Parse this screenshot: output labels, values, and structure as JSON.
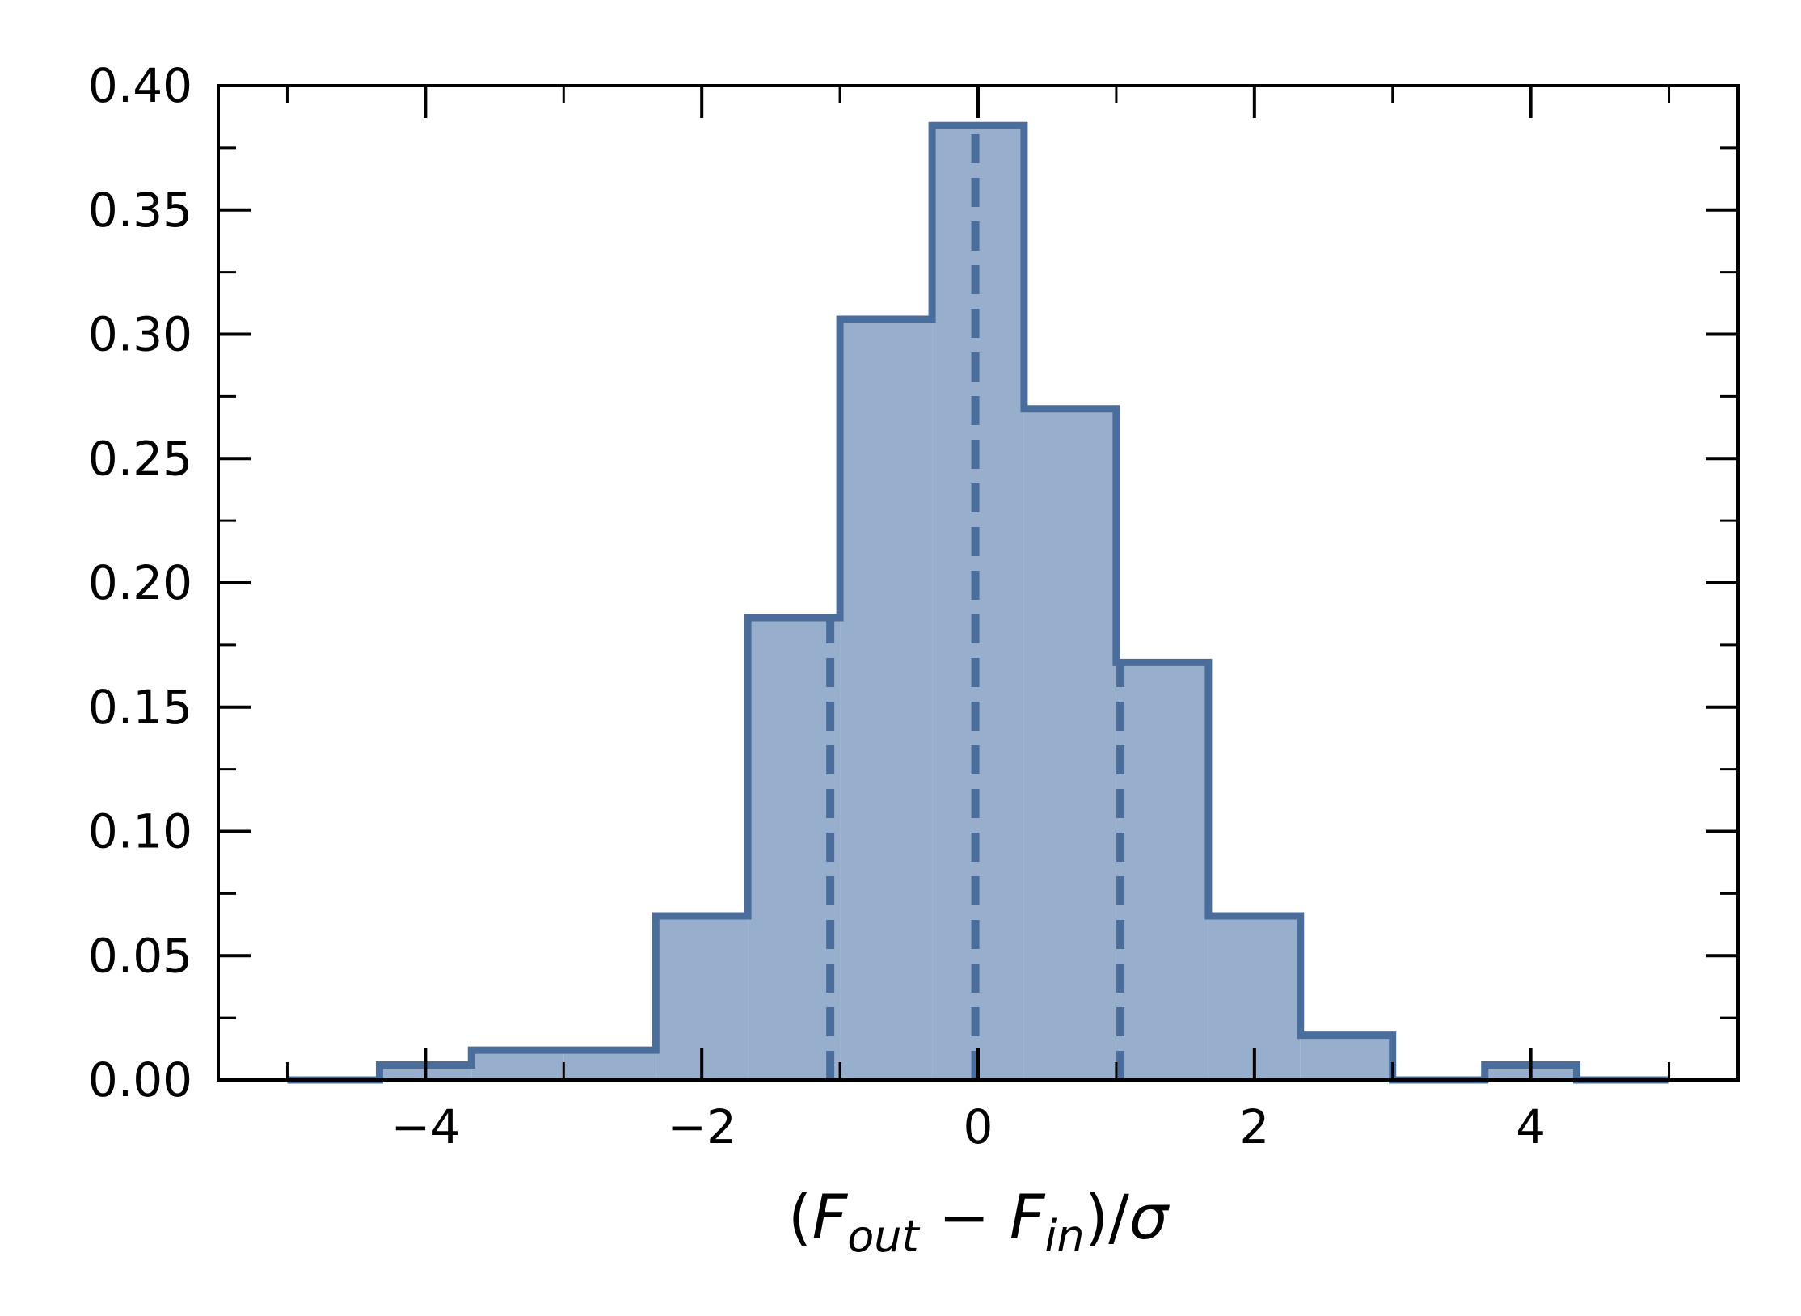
{
  "chart_data": {
    "type": "bar",
    "histogram": true,
    "bin_edges": [
      -5.0,
      -4.333,
      -3.667,
      -3.0,
      -2.333,
      -1.667,
      -1.0,
      -0.333,
      0.333,
      1.0,
      1.667,
      2.333,
      3.0,
      3.667,
      4.333,
      5.0
    ],
    "values": [
      0.0,
      0.006,
      0.012,
      0.012,
      0.066,
      0.186,
      0.306,
      0.384,
      0.27,
      0.168,
      0.066,
      0.018,
      0.0,
      0.006,
      0.0
    ],
    "vlines": [
      -1.07,
      -0.02,
      1.03
    ],
    "xlim": [
      -5.5,
      5.5
    ],
    "ylim": [
      0.0,
      0.4
    ],
    "xticks": [
      -4,
      -2,
      0,
      2,
      4
    ],
    "xtick_labels": [
      "−4",
      "−2",
      "0",
      "2",
      "4"
    ],
    "yticks": [
      0.0,
      0.05,
      0.1,
      0.15,
      0.2,
      0.25,
      0.3,
      0.35,
      0.4
    ],
    "ytick_labels": [
      "0.00",
      "0.05",
      "0.10",
      "0.15",
      "0.20",
      "0.25",
      "0.30",
      "0.35",
      "0.40"
    ],
    "xlabel": {
      "open": "(",
      "f1": "F",
      "sub1": "out",
      "minus": " − ",
      "f2": "F",
      "sub2": "in",
      "close": ")/",
      "sigma": "σ"
    },
    "ylabel": "",
    "title": "",
    "grid": false,
    "colors": {
      "fill": "#97afcc",
      "edge": "#4a6d9c",
      "axis": "#000000"
    }
  }
}
